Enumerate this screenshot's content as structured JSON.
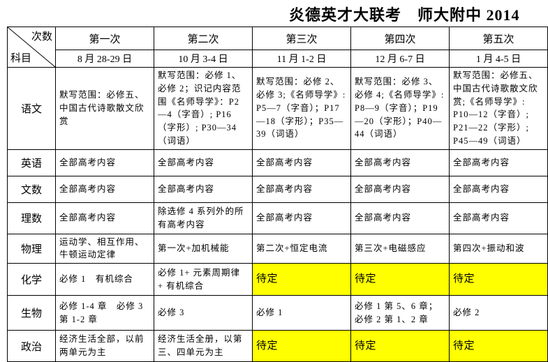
{
  "title": "炎德英才大联考　师大附中 2014",
  "colors": {
    "highlight": "#ffff00",
    "border": "#000000",
    "text": "#000000"
  },
  "table": {
    "corner": {
      "top_right": "次数",
      "bottom_left": "科目"
    },
    "columns": [
      {
        "label": "第一次",
        "date": "8 月 28-29 日"
      },
      {
        "label": "第二次",
        "date": "10 月 3-4 日"
      },
      {
        "label": "第三次",
        "date": "11 月 1-2 日"
      },
      {
        "label": "第四次",
        "date": "12 月 6-7 日"
      },
      {
        "label": "第五次",
        "date": "1 月 4-5 日"
      }
    ],
    "rows": [
      {
        "subject": "语文",
        "cells": [
          {
            "text": "默写范围：必修五、中国古代诗歌散文欣赏",
            "highlight": false
          },
          {
            "text": "默写范围：必修 1、必修 2；识记内容范围《名师导学》：P2—4（字音）; P16（字形）; P30—34（词语）",
            "highlight": false
          },
          {
            "text": "默写范围：必修 2、必修 3;《名师导学》: P5—7（字音）；P17—18（字形）；P35—39（词语）",
            "highlight": false
          },
          {
            "text": "默写范围：必修 3、必修 4;《名师导学》: P8—9（字音）；P19—20（字形）；P40—44（词语）",
            "highlight": false
          },
          {
            "text": "默写范围：必修五、中国古代诗歌散文欣赏;《名师导学》: P10—12（字音）; P21—22（字形）; P45—49（词语）",
            "highlight": false
          }
        ]
      },
      {
        "subject": "英语",
        "cells": [
          {
            "text": "全部高考内容",
            "highlight": false
          },
          {
            "text": "全部高考内容",
            "highlight": false
          },
          {
            "text": "全部高考内容",
            "highlight": false
          },
          {
            "text": "全部高考内容",
            "highlight": false
          },
          {
            "text": "全部高考内容",
            "highlight": false
          }
        ]
      },
      {
        "subject": "文数",
        "cells": [
          {
            "text": "全部高考内容",
            "highlight": false
          },
          {
            "text": "全部高考内容",
            "highlight": false
          },
          {
            "text": "全部高考内容",
            "highlight": false
          },
          {
            "text": "全部高考内容",
            "highlight": false
          },
          {
            "text": "全部高考内容",
            "highlight": false
          }
        ]
      },
      {
        "subject": "理数",
        "cells": [
          {
            "text": "全部高考内容",
            "highlight": false
          },
          {
            "text": "除选修 4 系列外的所有高考内容",
            "highlight": false
          },
          {
            "text": "全部高考内容",
            "highlight": false
          },
          {
            "text": "全部高考内容",
            "highlight": false
          },
          {
            "text": "全部高考内容",
            "highlight": false
          }
        ]
      },
      {
        "subject": "物理",
        "cells": [
          {
            "text": "运动学、相互作用、牛顿运动定律",
            "highlight": false
          },
          {
            "text": "第一次+加机械能",
            "highlight": false
          },
          {
            "text": "第二次+恒定电流",
            "highlight": false
          },
          {
            "text": "第三次+电磁感应",
            "highlight": false
          },
          {
            "text": "第四次+振动和波",
            "highlight": false
          }
        ]
      },
      {
        "subject": "化学",
        "cells": [
          {
            "text": "必修 1　有机综合",
            "highlight": false
          },
          {
            "text": "必修 1+ 元素周期律 + 有机综合",
            "highlight": false
          },
          {
            "text": "待定",
            "highlight": true
          },
          {
            "text": "待定",
            "highlight": true
          },
          {
            "text": "待定",
            "highlight": true
          }
        ]
      },
      {
        "subject": "生物",
        "cells": [
          {
            "text": "必修 1-4 章　必修 3 第 1-2 章",
            "highlight": false
          },
          {
            "text": "必修 3",
            "highlight": false
          },
          {
            "text": "必修 1",
            "highlight": false
          },
          {
            "text": "必修 1 第 5、6 章；必修 2 第 1、2 章",
            "highlight": false
          },
          {
            "text": "必修 2",
            "highlight": false
          }
        ]
      },
      {
        "subject": "政治",
        "cells": [
          {
            "text": "经济生活全部，以前两单元为主",
            "highlight": false
          },
          {
            "text": "经济生活全册，以第三、四单元为主",
            "highlight": false
          },
          {
            "text": "待定",
            "highlight": true
          },
          {
            "text": "待定",
            "highlight": true
          },
          {
            "text": "待定",
            "highlight": true
          }
        ]
      }
    ]
  }
}
